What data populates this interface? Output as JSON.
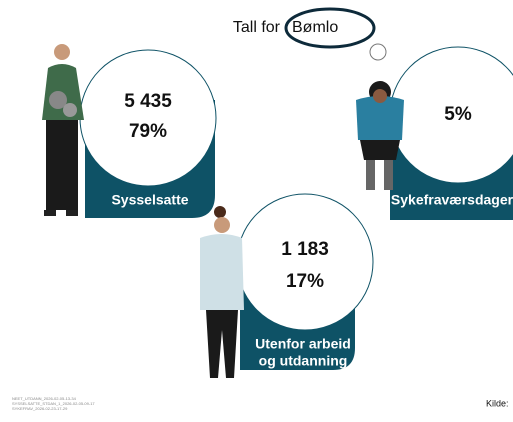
{
  "header": {
    "prefix": "Tall for",
    "place": "Bømlo"
  },
  "cards": [
    {
      "count": "5 435",
      "share": "79%",
      "label": [
        "Sysselsatte"
      ]
    },
    {
      "share": "5%",
      "label": [
        "Sykefraværsdager"
      ]
    },
    {
      "count": "1 183",
      "share": "17%",
      "label": [
        "Utenfor arbeid",
        "og utdanning"
      ]
    }
  ],
  "footer": {
    "sources": [
      "NEET_UTDANN_2026-02-05-13-34",
      "SYSSELSATTE_STDAN_1_2026-02-05-09-17",
      "SYKEFRAV_2026-02-23-17-29"
    ],
    "source_label": "Kilde:"
  }
}
